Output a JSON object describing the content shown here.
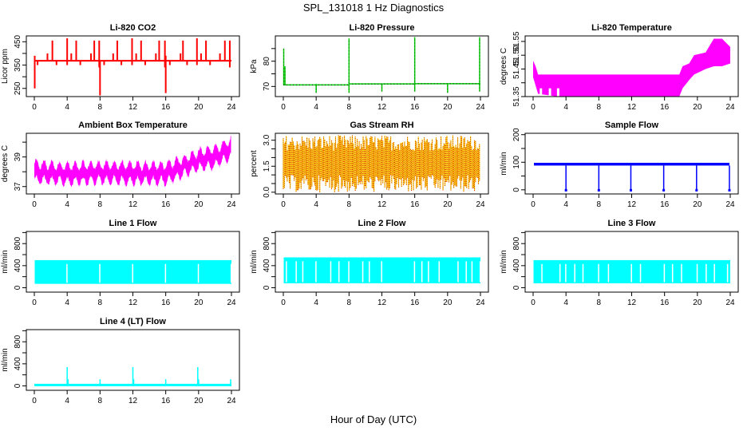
{
  "figure": {
    "title": "SPL_131018  1 Hz Diagnostics",
    "xlabel": "Hour of Day (UTC)"
  },
  "chart_data": [
    {
      "type": "line",
      "title": "Li-820 CO2",
      "ylabel": "Licor ppm",
      "color": "#ff0000",
      "xlim": [
        0,
        24
      ],
      "xticks": [
        0,
        4,
        8,
        12,
        16,
        20,
        24
      ],
      "ylim": [
        215,
        475
      ],
      "yticks": [
        250,
        300,
        350,
        400,
        450
      ],
      "ytick_labels": [
        "250",
        "",
        "350",
        "",
        "450"
      ],
      "baseline": 370,
      "band": [
        365,
        372
      ],
      "spikes": [
        {
          "x": 0.05,
          "lo": 250,
          "hi": 390
        },
        {
          "x": 0.4,
          "lo": 350,
          "hi": 370
        },
        {
          "x": 1.6,
          "lo": 370,
          "hi": 400
        },
        {
          "x": 2.2,
          "lo": 370,
          "hi": 455
        },
        {
          "x": 2.7,
          "lo": 350,
          "hi": 370
        },
        {
          "x": 4.0,
          "lo": 350,
          "hi": 465
        },
        {
          "x": 4.5,
          "lo": 370,
          "hi": 400
        },
        {
          "x": 5.1,
          "lo": 370,
          "hi": 455
        },
        {
          "x": 5.6,
          "lo": 350,
          "hi": 370
        },
        {
          "x": 6.9,
          "lo": 370,
          "hi": 400
        },
        {
          "x": 7.3,
          "lo": 370,
          "hi": 455
        },
        {
          "x": 7.9,
          "lo": 340,
          "hi": 455
        },
        {
          "x": 8.0,
          "lo": 220,
          "hi": 370
        },
        {
          "x": 8.5,
          "lo": 350,
          "hi": 370
        },
        {
          "x": 9.6,
          "lo": 370,
          "hi": 400
        },
        {
          "x": 10.1,
          "lo": 370,
          "hi": 455
        },
        {
          "x": 10.6,
          "lo": 350,
          "hi": 370
        },
        {
          "x": 11.9,
          "lo": 350,
          "hi": 465
        },
        {
          "x": 12.4,
          "lo": 370,
          "hi": 400
        },
        {
          "x": 13.0,
          "lo": 370,
          "hi": 455
        },
        {
          "x": 13.5,
          "lo": 350,
          "hi": 370
        },
        {
          "x": 14.8,
          "lo": 370,
          "hi": 400
        },
        {
          "x": 15.2,
          "lo": 370,
          "hi": 455
        },
        {
          "x": 15.9,
          "lo": 340,
          "hi": 455
        },
        {
          "x": 16.0,
          "lo": 230,
          "hi": 390
        },
        {
          "x": 16.5,
          "lo": 350,
          "hi": 370
        },
        {
          "x": 17.8,
          "lo": 370,
          "hi": 400
        },
        {
          "x": 18.1,
          "lo": 370,
          "hi": 455
        },
        {
          "x": 18.6,
          "lo": 350,
          "hi": 370
        },
        {
          "x": 19.8,
          "lo": 350,
          "hi": 465
        },
        {
          "x": 20.3,
          "lo": 370,
          "hi": 400
        },
        {
          "x": 20.9,
          "lo": 370,
          "hi": 455
        },
        {
          "x": 21.4,
          "lo": 350,
          "hi": 370
        },
        {
          "x": 22.6,
          "lo": 370,
          "hi": 400
        },
        {
          "x": 23.2,
          "lo": 370,
          "hi": 455
        },
        {
          "x": 23.8,
          "lo": 340,
          "hi": 455
        }
      ]
    },
    {
      "type": "line",
      "title": "Li-820 Pressure",
      "ylabel": "kPa",
      "color": "#00cc00",
      "xlim": [
        0,
        24
      ],
      "xticks": [
        0,
        4,
        8,
        12,
        16,
        20,
        24
      ],
      "ylim": [
        66,
        90
      ],
      "yticks": [
        70,
        75,
        80,
        85
      ],
      "ytick_labels": [
        "70",
        "",
        "80",
        ""
      ],
      "baseline_segments": [
        {
          "x0": 0.0,
          "x1": 8.0,
          "y": 70.6
        },
        {
          "x0": 8.0,
          "x1": 16.0,
          "y": 71.0
        },
        {
          "x0": 16.0,
          "x1": 24.0,
          "y": 71.1
        }
      ],
      "spikes": [
        {
          "x": 0.05,
          "lo": 70.6,
          "hi": 85.0
        },
        {
          "x": 0.2,
          "lo": 70.6,
          "hi": 78.0
        },
        {
          "x": 4.0,
          "lo": 67.5,
          "hi": 71.0
        },
        {
          "x": 8.0,
          "lo": 67.5,
          "hi": 89.0
        },
        {
          "x": 12.0,
          "lo": 68.0,
          "hi": 71.0
        },
        {
          "x": 16.0,
          "lo": 68.0,
          "hi": 89.5
        },
        {
          "x": 20.0,
          "lo": 67.5,
          "hi": 71.0
        },
        {
          "x": 23.9,
          "lo": 68.0,
          "hi": 89.5
        }
      ]
    },
    {
      "type": "area",
      "title": "Li-820 Temperature",
      "ylabel": "degrees C",
      "color": "#ff00ff",
      "xlim": [
        0,
        24
      ],
      "xticks": [
        0,
        4,
        8,
        12,
        16,
        20,
        24
      ],
      "ylim": [
        51.35,
        51.57
      ],
      "yticks": [
        51.35,
        51.4,
        51.45,
        51.5,
        51.55
      ],
      "ytick_labels": [
        "51.35",
        "",
        "51.45",
        "51.50",
        "51.55"
      ],
      "envelope": [
        {
          "x": 0.0,
          "lo": 51.42,
          "hi": 51.48
        },
        {
          "x": 0.3,
          "lo": 51.39,
          "hi": 51.46
        },
        {
          "x": 0.6,
          "lo": 51.36,
          "hi": 51.43
        },
        {
          "x": 3.0,
          "lo": 51.35,
          "hi": 51.43
        },
        {
          "x": 17.8,
          "lo": 51.35,
          "hi": 51.43
        },
        {
          "x": 18.2,
          "lo": 51.38,
          "hi": 51.46
        },
        {
          "x": 19.0,
          "lo": 51.41,
          "hi": 51.47
        },
        {
          "x": 19.6,
          "lo": 51.43,
          "hi": 51.5
        },
        {
          "x": 21.0,
          "lo": 51.45,
          "hi": 51.51
        },
        {
          "x": 22.0,
          "lo": 51.46,
          "hi": 51.56
        },
        {
          "x": 23.0,
          "lo": 51.46,
          "hi": 51.56
        },
        {
          "x": 24.0,
          "lo": 51.47,
          "hi": 51.53
        }
      ]
    },
    {
      "type": "area",
      "title": "Ambient Box Temperature",
      "ylabel": "degrees C",
      "color": "#ff00ff",
      "xlim": [
        0,
        24
      ],
      "xticks": [
        0,
        4,
        8,
        12,
        16,
        20,
        24
      ],
      "ylim": [
        36.5,
        40.6
      ],
      "yticks": [
        37,
        38,
        39,
        40
      ],
      "ytick_labels": [
        "37",
        "",
        "39",
        ""
      ],
      "trend": [
        {
          "x": 0,
          "mid": 38.0
        },
        {
          "x": 4,
          "mid": 37.85
        },
        {
          "x": 8,
          "mid": 37.95
        },
        {
          "x": 12,
          "mid": 37.9
        },
        {
          "x": 16,
          "mid": 37.9
        },
        {
          "x": 18,
          "mid": 38.3
        },
        {
          "x": 20,
          "mid": 38.8
        },
        {
          "x": 22,
          "mid": 39.0
        },
        {
          "x": 24,
          "mid": 39.6
        }
      ],
      "oscillation_amplitude": 0.75,
      "oscillation_period_hours": 0.95
    },
    {
      "type": "area",
      "title": "Gas Stream RH",
      "ylabel": "percent",
      "colors": [
        "#ffd700",
        "#cc0000"
      ],
      "xlim": [
        0,
        24
      ],
      "xticks": [
        0,
        4,
        8,
        12,
        16,
        20,
        24
      ],
      "ylim": [
        -0.1,
        3.4
      ],
      "yticks": [
        0.0,
        0.5,
        1.0,
        1.5,
        2.0,
        2.5,
        3.0
      ],
      "ytick_labels": [
        "0.0",
        "",
        "",
        "1.5",
        "",
        "",
        "3.0"
      ],
      "core_band": [
        1.0,
        2.4
      ],
      "max_excursion": [
        0.0,
        3.3
      ]
    },
    {
      "type": "line",
      "title": "Sample Flow",
      "ylabel": "ml/min",
      "color": "#0000ff",
      "xlim": [
        0,
        24
      ],
      "xticks": [
        0,
        4,
        8,
        12,
        16,
        20,
        24
      ],
      "ylim": [
        -15,
        205
      ],
      "yticks": [
        0,
        50,
        100,
        150,
        200
      ],
      "ytick_labels": [
        "0",
        "",
        "100",
        "",
        "200"
      ],
      "band": [
        88,
        98
      ],
      "dips": [
        {
          "x": 4.0,
          "lo": -3
        },
        {
          "x": 8.0,
          "lo": -3
        },
        {
          "x": 11.9,
          "lo": -3
        },
        {
          "x": 15.9,
          "lo": -3
        },
        {
          "x": 19.9,
          "lo": -3
        },
        {
          "x": 23.9,
          "lo": -3
        }
      ]
    },
    {
      "type": "area",
      "title": "Line 1 Flow",
      "ylabel": "ml/min",
      "color": "#00ffff",
      "xlim": [
        0,
        24
      ],
      "xticks": [
        0,
        4,
        8,
        12,
        16,
        20,
        24
      ],
      "ylim": [
        -80,
        1020
      ],
      "yticks": [
        0,
        200,
        400,
        600,
        800,
        1000
      ],
      "ytick_labels": [
        "0",
        "",
        "400",
        "",
        "800",
        ""
      ],
      "band": [
        70,
        500
      ],
      "gaps": [
        3.9,
        7.9,
        11.9,
        15.9,
        19.9,
        23.9
      ]
    },
    {
      "type": "area",
      "title": "Line 2 Flow",
      "ylabel": "ml/min",
      "color": "#00ffff",
      "xlim": [
        0,
        24
      ],
      "xticks": [
        0,
        4,
        8,
        12,
        16,
        20,
        24
      ],
      "ylim": [
        -80,
        1020
      ],
      "yticks": [
        0,
        200,
        400,
        600,
        800,
        1000
      ],
      "ytick_labels": [
        "0",
        "",
        "400",
        "",
        "800",
        ""
      ],
      "band": [
        80,
        550
      ],
      "gaps": [
        0.3,
        1.5,
        2.3,
        3.9,
        5.7,
        6.7,
        7.9,
        9.6,
        10.4,
        11.9,
        15.9,
        16.8,
        17.6,
        18.9,
        21.2,
        22.2,
        22.9,
        23.9
      ]
    },
    {
      "type": "area",
      "title": "Line 3 Flow",
      "ylabel": "ml/min",
      "color": "#00ffff",
      "xlim": [
        0,
        24
      ],
      "xticks": [
        0,
        4,
        8,
        12,
        16,
        20,
        24
      ],
      "ylim": [
        -80,
        1020
      ],
      "yticks": [
        0,
        200,
        400,
        600,
        800,
        1000
      ],
      "ytick_labels": [
        "0",
        "",
        "400",
        "",
        "800",
        ""
      ],
      "band": [
        80,
        500
      ],
      "gaps": [
        1.0,
        3.2,
        3.9,
        5.0,
        6.0,
        7.9,
        9.1,
        11.9,
        13.0,
        15.9,
        16.9,
        18.0,
        19.9,
        21.0,
        22.0,
        23.6
      ]
    },
    {
      "type": "line",
      "title": "Line 4 (LT) Flow",
      "ylabel": "ml/min",
      "color": "#00ffff",
      "xlim": [
        0,
        24
      ],
      "xticks": [
        0,
        4,
        8,
        12,
        16,
        20,
        24
      ],
      "ylim": [
        -80,
        1020
      ],
      "yticks": [
        0,
        200,
        400,
        600,
        800,
        1000
      ],
      "ytick_labels": [
        "0",
        "",
        "400",
        "",
        "800",
        ""
      ],
      "baseline": 15,
      "spikes": [
        {
          "x": 4.0,
          "hi": 340
        },
        {
          "x": 4.1,
          "hi": 120
        },
        {
          "x": 8.0,
          "hi": 120
        },
        {
          "x": 12.0,
          "hi": 340
        },
        {
          "x": 12.1,
          "hi": 120
        },
        {
          "x": 16.0,
          "hi": 120
        },
        {
          "x": 19.9,
          "hi": 340
        },
        {
          "x": 20.0,
          "hi": 120
        },
        {
          "x": 23.9,
          "hi": 120
        }
      ]
    }
  ]
}
